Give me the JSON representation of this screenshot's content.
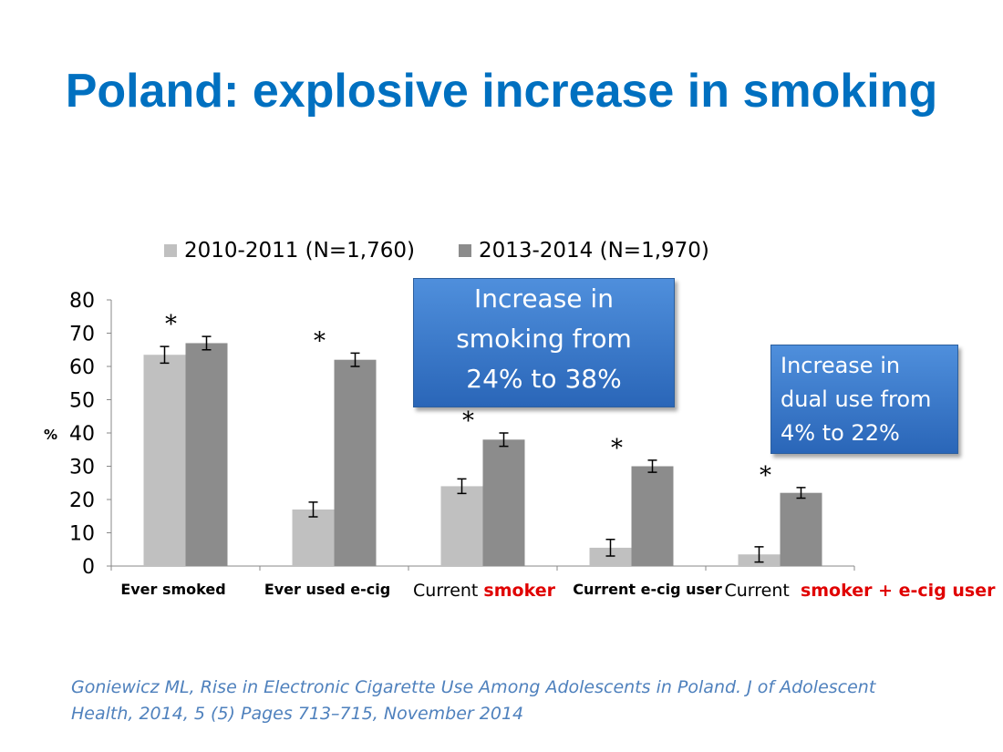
{
  "title": "Poland: explosive increase in smoking",
  "chart_data": {
    "type": "bar",
    "ylabel": "%",
    "ylim": [
      0,
      80
    ],
    "yticks": [
      0,
      10,
      20,
      30,
      40,
      50,
      60,
      70,
      80
    ],
    "grid": false,
    "legend_position": "top",
    "categories": [
      "Ever smoked",
      "Ever used e-cig",
      "Current smoker",
      "Current e-cig user",
      "Current smoker + e-cig user"
    ],
    "category_labels": [
      [
        {
          "text": "Ever smoked",
          "style": "bold"
        }
      ],
      [
        {
          "text": "Ever used e-cig",
          "style": "bold"
        }
      ],
      [
        {
          "text": "Current ",
          "style": "normal"
        },
        {
          "text": "smoker",
          "style": "red"
        }
      ],
      [
        {
          "text": "Current e-cig user",
          "style": "bold"
        }
      ],
      [
        {
          "text": "Current  ",
          "style": "normal"
        },
        {
          "text": "smoker + e-cig user",
          "style": "red"
        }
      ]
    ],
    "series": [
      {
        "name": "2010-2011 (N=1,760)",
        "color": "#c0c0c0",
        "values": [
          63.5,
          17,
          24,
          5.5,
          3.5
        ],
        "error": [
          2.5,
          2.2,
          2.2,
          2.5,
          2.3
        ]
      },
      {
        "name": "2013-2014 (N=1,970)",
        "color": "#8c8c8c",
        "values": [
          67,
          62,
          38,
          30,
          22
        ],
        "error": [
          2,
          2,
          2,
          1.8,
          1.6
        ]
      }
    ],
    "significance_marker": "*"
  },
  "callouts": [
    "Increase in smoking from 24% to 38%",
    "Increase in dual use from 4% to 22%"
  ],
  "callout_lines": [
    [
      "Increase in",
      "smoking from",
      "24% to 38%"
    ],
    [
      "Increase in",
      "dual use from",
      "4% to 22%"
    ]
  ],
  "citation_lines": [
    "Goniewicz ML, Rise in Electronic Cigarette Use Among Adolescents in Poland. J of Adolescent",
    "Health,  2014, 5 (5) Pages 713–715, November 2014"
  ]
}
